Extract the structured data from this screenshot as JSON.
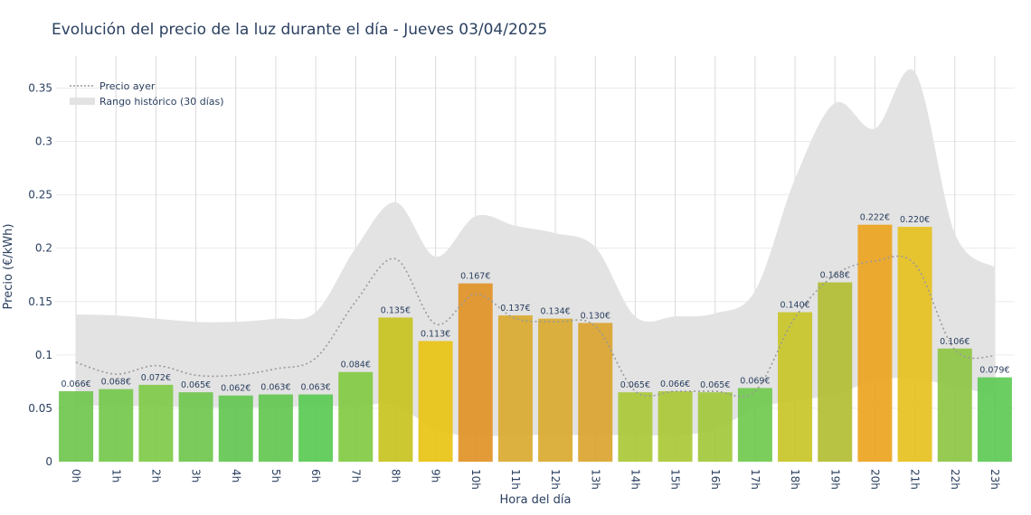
{
  "chart_data": {
    "type": "bar",
    "title": "Evolución del precio de la luz durante el día - Jueves 03/04/2025",
    "xlabel": "Hora del día",
    "ylabel": "Precio (€/kWh)",
    "ylim": [
      0,
      0.38
    ],
    "yticks": [
      0,
      0.05,
      0.1,
      0.15,
      0.2,
      0.25,
      0.3,
      0.35
    ],
    "ytick_labels": [
      "0",
      "0.05",
      "0.1",
      "0.15",
      "0.2",
      "0.25",
      "0.3",
      "0.35"
    ],
    "categories": [
      "0h",
      "1h",
      "2h",
      "3h",
      "4h",
      "5h",
      "6h",
      "7h",
      "8h",
      "9h",
      "10h",
      "11h",
      "12h",
      "13h",
      "14h",
      "15h",
      "16h",
      "17h",
      "18h",
      "19h",
      "20h",
      "21h",
      "22h",
      "23h"
    ],
    "series": [
      {
        "kind": "bar",
        "values": [
          0.066,
          0.068,
          0.072,
          0.065,
          0.062,
          0.063,
          0.063,
          0.084,
          0.135,
          0.113,
          0.167,
          0.137,
          0.134,
          0.13,
          0.065,
          0.066,
          0.065,
          0.069,
          0.14,
          0.168,
          0.222,
          0.22,
          0.106,
          0.079
        ],
        "labels": [
          "0.066€",
          "0.068€",
          "0.072€",
          "0.065€",
          "0.062€",
          "0.063€",
          "0.063€",
          "0.084€",
          "0.135€",
          "0.113€",
          "0.167€",
          "0.137€",
          "0.134€",
          "0.130€",
          "0.065€",
          "0.066€",
          "0.065€",
          "0.069€",
          "0.140€",
          "0.168€",
          "0.222€",
          "0.220€",
          "0.106€",
          "0.079€"
        ],
        "colors": [
          "#6cc44a",
          "#72c648",
          "#7cc944",
          "#6cc44a",
          "#5fc54e",
          "#60c54d",
          "#57c951",
          "#7ec93e",
          "#c7c21c",
          "#e8c20e",
          "#e09022",
          "#d9a82a",
          "#d8a82a",
          "#d9a22a",
          "#a8c834",
          "#a8c834",
          "#a0c836",
          "#6ec94a",
          "#c6c424",
          "#b0bc30",
          "#eca21c",
          "#e6c01c",
          "#8cc440",
          "#5ac952"
        ]
      },
      {
        "kind": "line",
        "name": "Precio ayer",
        "color": "#9a9a9a",
        "values": [
          0.093,
          0.082,
          0.09,
          0.081,
          0.081,
          0.087,
          0.097,
          0.15,
          0.19,
          0.129,
          0.157,
          0.134,
          0.131,
          0.127,
          0.066,
          0.066,
          0.066,
          0.066,
          0.135,
          0.175,
          0.188,
          0.185,
          0.105,
          0.099
        ]
      },
      {
        "kind": "band",
        "name": "Rango histórico (30 días)",
        "color": "#e3e3e3",
        "upper": [
          0.138,
          0.137,
          0.134,
          0.131,
          0.131,
          0.134,
          0.14,
          0.2,
          0.243,
          0.192,
          0.23,
          0.221,
          0.214,
          0.201,
          0.136,
          0.136,
          0.139,
          0.16,
          0.265,
          0.336,
          0.312,
          0.365,
          0.214,
          0.182
        ],
        "lower": [
          0.053,
          0.052,
          0.052,
          0.051,
          0.051,
          0.051,
          0.052,
          0.052,
          0.053,
          0.03,
          0.024,
          0.025,
          0.025,
          0.025,
          0.025,
          0.025,
          0.03,
          0.05,
          0.057,
          0.063,
          0.076,
          0.078,
          0.07,
          0.063
        ]
      }
    ],
    "legend": {
      "placement": "top-left",
      "entries": [
        "Precio ayer",
        "Rango histórico (30 días)"
      ]
    },
    "grid": true
  }
}
